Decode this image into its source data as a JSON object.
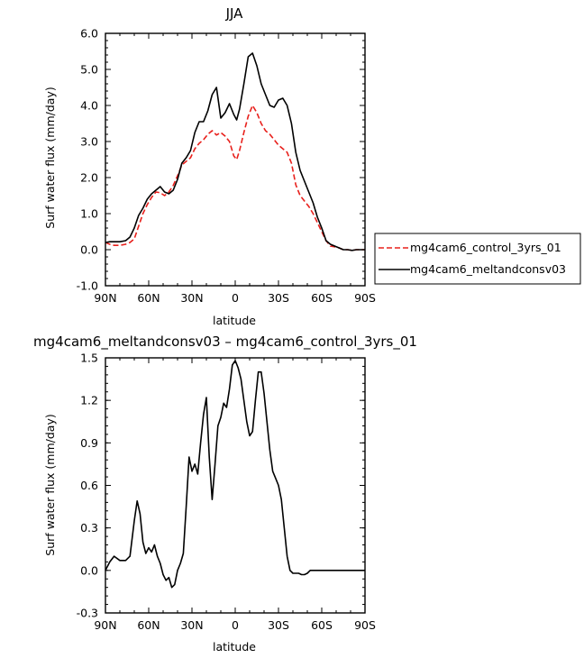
{
  "chart_data": [
    {
      "type": "line",
      "title": "JJA",
      "xlabel": "latitude",
      "ylabel": "Surf water flux (mm/day)",
      "xlim": [
        90,
        -90
      ],
      "ylim": [
        -1.0,
        6.0
      ],
      "x_ticks": [
        90,
        60,
        30,
        0,
        -30,
        -60,
        -90
      ],
      "x_tick_labels": [
        "90N",
        "60N",
        "30N",
        "0",
        "30S",
        "60S",
        "90S"
      ],
      "y_ticks": [
        -1.0,
        0.0,
        1.0,
        2.0,
        3.0,
        4.0,
        5.0,
        6.0
      ],
      "y_tick_labels": [
        "-1.0",
        "0.0",
        "1.0",
        "2.0",
        "3.0",
        "4.0",
        "5.0",
        "6.0"
      ],
      "legend_position": "outside-right",
      "series": [
        {
          "name": "mg4cam6_control_3yrs_01",
          "color": "#e8201c",
          "dash": "dashed",
          "x": [
            90,
            87,
            84,
            80,
            76,
            73,
            70,
            67,
            64,
            61,
            58,
            55,
            52,
            49,
            46,
            43,
            40,
            37,
            34,
            31,
            28,
            25,
            22,
            19,
            16,
            13,
            10,
            7,
            4,
            1,
            -1,
            -3,
            -6,
            -9,
            -12,
            -15,
            -18,
            -21,
            -24,
            -27,
            -30,
            -33,
            -36,
            -39,
            -42,
            -45,
            -48,
            -51,
            -54,
            -57,
            -60,
            -63,
            -66,
            -69,
            -72,
            -75,
            -78,
            -81,
            -84,
            -87,
            -90
          ],
          "y": [
            0.2,
            0.15,
            0.12,
            0.12,
            0.15,
            0.2,
            0.3,
            0.65,
            1.0,
            1.25,
            1.45,
            1.6,
            1.58,
            1.5,
            1.6,
            1.78,
            2.05,
            2.35,
            2.45,
            2.55,
            2.8,
            2.95,
            3.05,
            3.2,
            3.3,
            3.18,
            3.25,
            3.15,
            3.0,
            2.6,
            2.5,
            2.75,
            3.25,
            3.7,
            4.0,
            3.8,
            3.5,
            3.3,
            3.2,
            3.05,
            2.9,
            2.8,
            2.7,
            2.4,
            1.8,
            1.5,
            1.35,
            1.2,
            1.0,
            0.75,
            0.5,
            0.25,
            0.1,
            0.08,
            0.05,
            0.0,
            0.0,
            -0.02,
            0.0,
            0.0,
            0.0
          ]
        },
        {
          "name": "mg4cam6_meltandconsv03",
          "color": "#000000",
          "dash": "solid",
          "x": [
            90,
            87,
            84,
            80,
            76,
            73,
            70,
            67,
            64,
            61,
            58,
            55,
            52,
            49,
            46,
            43,
            40,
            37,
            34,
            31,
            28,
            25,
            22,
            19,
            16,
            13,
            10,
            7,
            4,
            1,
            -1,
            -3,
            -6,
            -9,
            -12,
            -15,
            -18,
            -21,
            -24,
            -27,
            -30,
            -33,
            -36,
            -39,
            -42,
            -45,
            -48,
            -51,
            -54,
            -57,
            -60,
            -63,
            -66,
            -69,
            -72,
            -75,
            -78,
            -81,
            -84,
            -87,
            -90
          ],
          "y": [
            0.2,
            0.22,
            0.22,
            0.22,
            0.25,
            0.35,
            0.6,
            0.95,
            1.15,
            1.4,
            1.55,
            1.65,
            1.75,
            1.6,
            1.55,
            1.65,
            1.95,
            2.4,
            2.55,
            2.75,
            3.25,
            3.55,
            3.55,
            3.85,
            4.3,
            4.5,
            3.65,
            3.8,
            4.05,
            3.75,
            3.6,
            3.9,
            4.6,
            5.35,
            5.45,
            5.1,
            4.6,
            4.3,
            4.0,
            3.95,
            4.15,
            4.2,
            4.0,
            3.5,
            2.7,
            2.2,
            1.9,
            1.6,
            1.3,
            0.9,
            0.6,
            0.25,
            0.15,
            0.1,
            0.05,
            0.0,
            0.0,
            -0.02,
            0.0,
            0.0,
            0.0
          ]
        }
      ]
    },
    {
      "type": "line",
      "title": "mg4cam6_meltandconsv03 – mg4cam6_control_3yrs_01",
      "xlabel": "latitude",
      "ylabel": "Surf water flux (mm/day)",
      "xlim": [
        90,
        -90
      ],
      "ylim": [
        -0.3,
        1.5
      ],
      "x_ticks": [
        90,
        60,
        30,
        0,
        -30,
        -60,
        -90
      ],
      "x_tick_labels": [
        "90N",
        "60N",
        "30N",
        "0",
        "30S",
        "60S",
        "90S"
      ],
      "y_ticks": [
        -0.3,
        0.0,
        0.3,
        0.6,
        0.9,
        1.2,
        1.5
      ],
      "y_tick_labels": [
        "-0.3",
        "0.0",
        "0.3",
        "0.6",
        "0.9",
        "1.2",
        "1.5"
      ],
      "series": [
        {
          "color": "#000000",
          "dash": "solid",
          "x": [
            90,
            87,
            84,
            80,
            76,
            73,
            70,
            68,
            66,
            64,
            62,
            60,
            58,
            56,
            54,
            52,
            50,
            48,
            46,
            44,
            42,
            40,
            38,
            36,
            34,
            32,
            30,
            28,
            26,
            24,
            22,
            20,
            18,
            16,
            14,
            12,
            10,
            8,
            6,
            4,
            2,
            0,
            -2,
            -4,
            -6,
            -8,
            -10,
            -12,
            -14,
            -16,
            -18,
            -20,
            -22,
            -24,
            -26,
            -28,
            -30,
            -32,
            -34,
            -36,
            -38,
            -40,
            -42,
            -44,
            -46,
            -48,
            -50,
            -52,
            -54,
            -56,
            -58,
            -60,
            -63,
            -66,
            -69,
            -72,
            -75,
            -78,
            -81,
            -84,
            -87,
            -90
          ],
          "y": [
            0.0,
            0.06,
            0.1,
            0.07,
            0.07,
            0.1,
            0.35,
            0.49,
            0.4,
            0.2,
            0.12,
            0.16,
            0.13,
            0.18,
            0.1,
            0.05,
            -0.03,
            -0.07,
            -0.05,
            -0.12,
            -0.1,
            0.0,
            0.05,
            0.12,
            0.45,
            0.8,
            0.7,
            0.75,
            0.68,
            0.9,
            1.1,
            1.22,
            0.8,
            0.5,
            0.75,
            1.02,
            1.08,
            1.18,
            1.15,
            1.28,
            1.45,
            1.48,
            1.43,
            1.35,
            1.2,
            1.05,
            0.95,
            0.98,
            1.2,
            1.4,
            1.4,
            1.25,
            1.05,
            0.85,
            0.7,
            0.65,
            0.6,
            0.5,
            0.3,
            0.1,
            0.0,
            -0.02,
            -0.02,
            -0.02,
            -0.03,
            -0.03,
            -0.02,
            0.0,
            0.0,
            0.0,
            0.0,
            0.0,
            0.0,
            0.0,
            0.0,
            0.0,
            0.0,
            0.0,
            0.0,
            0.0,
            0.0,
            0.0
          ]
        }
      ]
    }
  ]
}
